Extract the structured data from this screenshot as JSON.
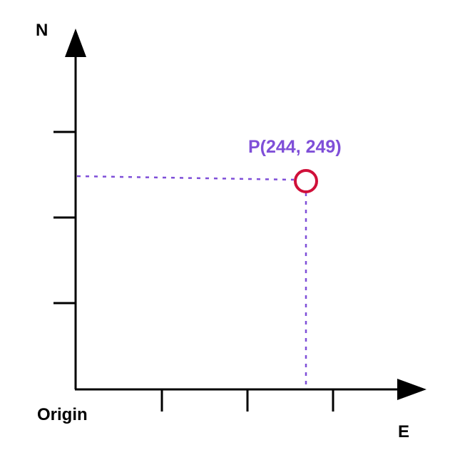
{
  "axes": {
    "north_label": "N",
    "east_label": "E",
    "origin_label": "Origin"
  },
  "point": {
    "label": "P(244, 249)",
    "x": 244,
    "y": 249
  },
  "colors": {
    "axis": "#000000",
    "guide": "#7f4fd8",
    "point_label": "#7f4fd8",
    "marker": "#d0103a"
  }
}
